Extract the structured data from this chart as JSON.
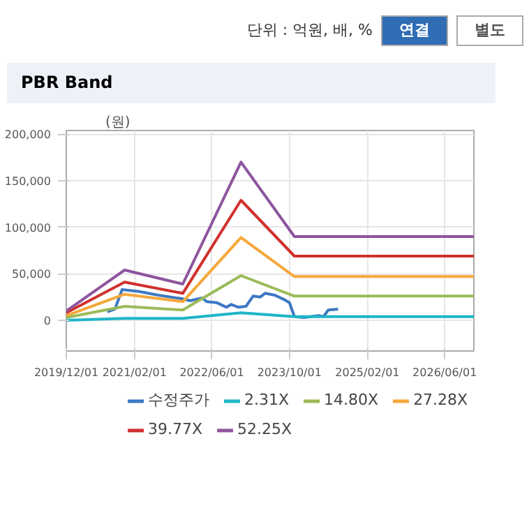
{
  "chart_data": {
    "type": "line",
    "title": "PBR Band",
    "ylabel": "(원)",
    "annotations": [
      "단위 : 억원, 배, %",
      "연결",
      "별도"
    ],
    "xlim": [
      "2019-12-01",
      "2026-12-01"
    ],
    "xticks": [
      {
        "value": "2019-12-01",
        "label": "2019/12/01"
      },
      {
        "value": "2021-02-01",
        "label": "2021/02/01"
      },
      {
        "value": "2022-06-01",
        "label": "2022/06/01"
      },
      {
        "value": "2023-10-01",
        "label": "2023/10/01"
      },
      {
        "value": "2025-02-01",
        "label": "2025/02/01"
      },
      {
        "value": "2026-06-01",
        "label": "2026/06/01"
      }
    ],
    "ylim": [
      -33000,
      204000
    ],
    "yticks": [
      {
        "value": 0,
        "label": "0"
      },
      {
        "value": 50000,
        "label": "50,000"
      },
      {
        "value": 100000,
        "label": "100,000"
      },
      {
        "value": 150000,
        "label": "150,000"
      },
      {
        "value": 200000,
        "label": "200,000"
      }
    ],
    "grid": true,
    "legend": "bottom",
    "marker": "none",
    "line_style": "solid",
    "series": [
      {
        "name": "수정주가",
        "color": "#3c78c3",
        "x": [
          "2020-08-15",
          "2020-10-01",
          "2020-11-15",
          "2021-03-01",
          "2021-07-01",
          "2021-12-01",
          "2022-01-15",
          "2022-04-01",
          "2022-05-01",
          "2022-07-01",
          "2022-09-01",
          "2022-10-01",
          "2022-11-15",
          "2023-01-01",
          "2023-02-15",
          "2023-04-01",
          "2023-05-01",
          "2023-07-01",
          "2023-09-01",
          "2023-10-01",
          "2023-11-01",
          "2024-01-01",
          "2024-04-01",
          "2024-05-01",
          "2024-06-01",
          "2024-08-01"
        ],
        "values": [
          9000,
          12000,
          33000,
          31000,
          27000,
          23000,
          21000,
          24000,
          20000,
          19000,
          14000,
          17000,
          14000,
          15000,
          26000,
          25000,
          29000,
          27000,
          22000,
          19000,
          4000,
          3000,
          5000,
          4000,
          11000,
          12000
        ]
      },
      {
        "name": "2.31X",
        "color": "#1fb5c8",
        "x": [
          "2019-12-01",
          "2020-12-01",
          "2021-12-01",
          "2022-12-01",
          "2023-11-01",
          "2026-12-01"
        ],
        "values": [
          0,
          2000,
          2000,
          8000,
          4000,
          4000
        ]
      },
      {
        "name": "14.80X",
        "color": "#9bbb59",
        "x": [
          "2019-12-01",
          "2020-12-01",
          "2021-12-01",
          "2022-12-01",
          "2023-11-01",
          "2026-12-01"
        ],
        "values": [
          3000,
          15000,
          11000,
          48000,
          26000,
          26000
        ]
      },
      {
        "name": "27.28X",
        "color": "#f5a83a",
        "x": [
          "2019-12-01",
          "2020-12-01",
          "2021-12-01",
          "2022-12-01",
          "2023-11-01",
          "2026-12-01"
        ],
        "values": [
          5000,
          28000,
          20000,
          89000,
          47000,
          47000
        ]
      },
      {
        "name": "39.77X",
        "color": "#d0312d",
        "x": [
          "2019-12-01",
          "2020-12-01",
          "2021-12-01",
          "2022-12-01",
          "2023-11-01",
          "2026-12-01"
        ],
        "values": [
          8000,
          41000,
          29000,
          129000,
          69000,
          69000
        ]
      },
      {
        "name": "52.25X",
        "color": "#8e559e",
        "x": [
          "2019-12-01",
          "2020-12-01",
          "2021-12-01",
          "2022-12-01",
          "2023-11-01",
          "2026-12-01"
        ],
        "values": [
          10000,
          54000,
          39000,
          170000,
          90000,
          90000
        ]
      }
    ]
  }
}
